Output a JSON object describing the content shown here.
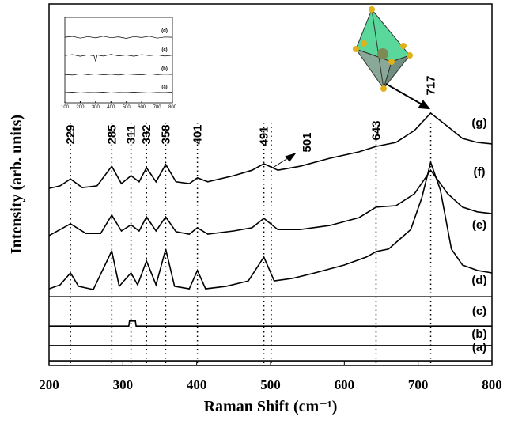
{
  "chart_data": [
    {
      "type": "line",
      "xlabel": "Raman Shift (cm⁻¹)",
      "ylabel": "Intensity (arb. units)",
      "xlim": [
        200,
        800
      ],
      "xticks": [
        200,
        300,
        400,
        500,
        600,
        700,
        800
      ],
      "ylim": [
        0,
        100
      ],
      "peaks": [
        229,
        285,
        311,
        332,
        358,
        401,
        491,
        501,
        643,
        717
      ],
      "series": [
        {
          "name": "(a)",
          "color": "#000000",
          "x": [
            200,
            800
          ],
          "values": [
            1.3,
            1.3
          ]
        },
        {
          "name": "(b)",
          "color": "#000000",
          "x": [
            200,
            800
          ],
          "values": [
            5.5,
            5.5
          ]
        },
        {
          "name": "(c)",
          "color": "#000000",
          "x": [
            200,
            308,
            309,
            317,
            318,
            800
          ],
          "values": [
            10.9,
            10.9,
            12.3,
            12.3,
            10.9,
            10.9
          ]
        },
        {
          "name": "(d)",
          "color": "#000000",
          "x": [
            200,
            800
          ],
          "values": [
            19.0,
            19.0
          ]
        },
        {
          "name": "(e)",
          "color": "#000000",
          "x": [
            200,
            215,
            229,
            240,
            260,
            285,
            295,
            311,
            320,
            332,
            345,
            358,
            370,
            390,
            401,
            412,
            440,
            470,
            491,
            505,
            530,
            560,
            600,
            630,
            643,
            660,
            690,
            705,
            717,
            730,
            745,
            760,
            780,
            800
          ],
          "values": [
            21.2,
            22.3,
            25.6,
            21.9,
            21.0,
            31.7,
            21.9,
            25.6,
            22.3,
            28.9,
            22.3,
            32.2,
            21.9,
            21.2,
            26.3,
            21.2,
            21.9,
            23.4,
            30.0,
            23.4,
            24.1,
            25.6,
            27.8,
            30.0,
            31.5,
            32.2,
            37.6,
            46.4,
            56.2,
            48.6,
            32.2,
            27.8,
            26.3,
            25.6
          ]
        },
        {
          "name": "(f)",
          "color": "#000000",
          "x": [
            200,
            229,
            250,
            270,
            285,
            298,
            311,
            322,
            332,
            345,
            358,
            372,
            390,
            401,
            415,
            450,
            475,
            491,
            510,
            540,
            580,
            620,
            643,
            670,
            695,
            717,
            740,
            760,
            780,
            800
          ],
          "values": [
            35.9,
            39.2,
            36.5,
            36.5,
            41.6,
            37.2,
            38.9,
            37.2,
            41.1,
            37.2,
            41.1,
            37.0,
            36.3,
            38.1,
            36.3,
            37.2,
            38.1,
            40.7,
            37.6,
            37.6,
            38.7,
            40.9,
            43.8,
            44.2,
            47.5,
            54.0,
            47.5,
            43.8,
            42.5,
            42.0
          ]
        },
        {
          "name": "(g)",
          "color": "#000000",
          "x": [
            200,
            215,
            229,
            245,
            265,
            285,
            298,
            311,
            322,
            332,
            345,
            358,
            372,
            390,
            401,
            415,
            450,
            475,
            491,
            510,
            540,
            580,
            620,
            643,
            670,
            695,
            717,
            740,
            760,
            780,
            800
          ],
          "values": [
            49.0,
            49.7,
            51.6,
            49.2,
            49.7,
            55.1,
            50.3,
            52.5,
            50.8,
            54.7,
            50.8,
            55.6,
            50.8,
            50.3,
            51.9,
            50.8,
            52.5,
            54.0,
            55.8,
            54.0,
            55.1,
            57.3,
            59.1,
            60.6,
            61.7,
            65.0,
            69.8,
            66.1,
            62.8,
            61.7,
            61.3
          ]
        }
      ]
    },
    {
      "type": "line",
      "xlim": [
        100,
        800
      ],
      "xticks": [
        100,
        200,
        300,
        400,
        500,
        600,
        700,
        800
      ],
      "ylim": [
        0,
        4
      ],
      "series": [
        {
          "name": "(a)",
          "color": "#000000",
          "x": [
            100,
            150,
            200,
            250,
            300,
            350,
            400,
            450,
            500,
            550,
            600,
            650,
            700,
            750,
            800
          ],
          "values": [
            0.48,
            0.5,
            0.47,
            0.49,
            0.48,
            0.5,
            0.47,
            0.49,
            0.48,
            0.5,
            0.48,
            0.47,
            0.49,
            0.48,
            0.5
          ]
        },
        {
          "name": "(b)",
          "color": "#000000",
          "x": [
            100,
            150,
            200,
            250,
            300,
            350,
            400,
            450,
            500,
            550,
            600,
            650,
            700,
            750,
            800
          ],
          "values": [
            1.33,
            1.3,
            1.36,
            1.32,
            1.35,
            1.31,
            1.34,
            1.3,
            1.35,
            1.33,
            1.31,
            1.36,
            1.32,
            1.34,
            1.33
          ]
        },
        {
          "name": "(c)",
          "color": "#000000",
          "x": [
            100,
            150,
            200,
            250,
            290,
            300,
            310,
            350,
            400,
            450,
            500,
            550,
            600,
            650,
            700,
            750,
            800
          ],
          "values": [
            2.22,
            2.26,
            2.18,
            2.25,
            2.2,
            1.95,
            2.24,
            2.19,
            2.27,
            2.2,
            2.24,
            2.18,
            2.26,
            2.21,
            2.25,
            2.19,
            2.23
          ]
        },
        {
          "name": "(d)",
          "color": "#000000",
          "x": [
            100,
            150,
            200,
            250,
            300,
            350,
            400,
            450,
            500,
            550,
            600,
            650,
            700,
            750,
            800
          ],
          "values": [
            3.07,
            3.11,
            3.03,
            3.1,
            3.04,
            3.12,
            3.05,
            3.09,
            3.02,
            3.1,
            3.06,
            3.12,
            3.03,
            3.08,
            3.07
          ]
        }
      ]
    }
  ]
}
